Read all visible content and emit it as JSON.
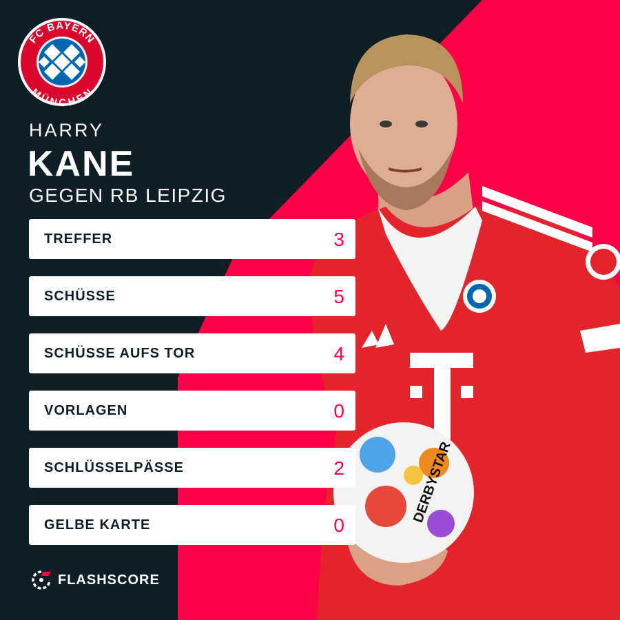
{
  "player": {
    "first_name": "HARRY",
    "last_name": "KANE",
    "opponent_line": "GEGEN RB LEIPZIG"
  },
  "crest": {
    "top_text": "FC BAYERN",
    "bottom_text": "MÜNCHEN"
  },
  "jersey": {
    "sponsor_letter": "T",
    "ball_text": "DERBYSTAR"
  },
  "stats": [
    {
      "label": "TREFFER",
      "value": "3"
    },
    {
      "label": "SCHÜSSE",
      "value": "5"
    },
    {
      "label": "SCHÜSSE AUFS TOR",
      "value": "4"
    },
    {
      "label": "VORLAGEN",
      "value": "0"
    },
    {
      "label": "SCHLÜSSELPÄSSE",
      "value": "2"
    },
    {
      "label": "GELBE KARTE",
      "value": "0"
    }
  ],
  "brand": {
    "name": "FLASHSCORE"
  },
  "colors": {
    "background": "#0e1e25",
    "accent": "#ff0046",
    "card": "#ffffff",
    "bayern_red": "#dc052d",
    "bayern_blue": "#0066b2"
  },
  "icons": {
    "crest": "fc-bayern-crest",
    "brand": "flashscore-logo-icon"
  }
}
